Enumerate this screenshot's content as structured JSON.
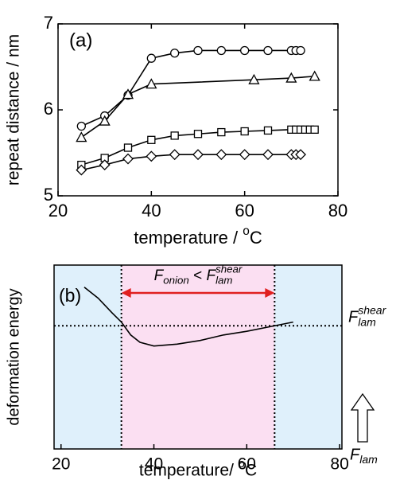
{
  "chart_data": [
    {
      "type": "line",
      "label": "(a)",
      "ylabel": "repeat distance / nm",
      "xlabel_parts": [
        {
          "t": "temperature / "
        },
        {
          "sup": "o"
        },
        {
          "t": "C"
        }
      ],
      "xlim": [
        20,
        80
      ],
      "ylim": [
        5,
        7
      ],
      "xticks": [
        20,
        40,
        60,
        80
      ],
      "yticks": [
        5,
        6,
        7
      ],
      "series": [
        {
          "marker": "circle",
          "color": "#000000",
          "x": [
            25,
            30,
            35,
            40,
            45,
            50,
            55,
            60,
            65,
            70,
            71,
            72
          ],
          "values": [
            5.81,
            5.93,
            6.17,
            6.6,
            6.66,
            6.69,
            6.69,
            6.69,
            6.69,
            6.69,
            6.69,
            6.69
          ]
        },
        {
          "marker": "triangle",
          "color": "#000000",
          "x": [
            25,
            30,
            35,
            40,
            62,
            70,
            75
          ],
          "values": [
            5.68,
            5.87,
            6.18,
            6.3,
            6.35,
            6.37,
            6.39
          ]
        },
        {
          "marker": "square",
          "color": "#000000",
          "x": [
            25,
            30,
            35,
            40,
            45,
            50,
            55,
            60,
            65,
            70,
            71,
            72,
            73,
            74,
            75
          ],
          "values": [
            5.36,
            5.44,
            5.56,
            5.65,
            5.7,
            5.72,
            5.74,
            5.75,
            5.76,
            5.77,
            5.77,
            5.77,
            5.77,
            5.77,
            5.77
          ]
        },
        {
          "marker": "diamond",
          "color": "#000000",
          "x": [
            25,
            30,
            35,
            40,
            45,
            50,
            55,
            60,
            65,
            70,
            71,
            72
          ],
          "values": [
            5.3,
            5.36,
            5.43,
            5.46,
            5.48,
            5.48,
            5.48,
            5.48,
            5.48,
            5.48,
            5.48,
            5.48
          ]
        }
      ]
    },
    {
      "type": "line",
      "label": "(b)",
      "ylabel": "deformation energy",
      "xlabel_parts": [
        {
          "t": "temperature/ "
        },
        {
          "sup": "o"
        },
        {
          "t": "C"
        }
      ],
      "xlim": [
        18.5,
        80.5
      ],
      "ylim": [
        0,
        1
      ],
      "xticks": [
        20,
        40,
        60,
        80
      ],
      "regions": [
        {
          "from": 18.5,
          "to": 33,
          "color": "#dff0fb"
        },
        {
          "from": 33,
          "to": 66,
          "color": "#fbdff2"
        },
        {
          "from": 66,
          "to": 80.5,
          "color": "#dff0fb"
        }
      ],
      "threshold": 0.67,
      "arrow_color": "#e02020",
      "arrow_label_parts": [
        {
          "t": "F",
          "italic": true
        },
        {
          "sub": "onion",
          "italic": true
        },
        {
          "t": " < "
        },
        {
          "t": "F",
          "italic": true
        },
        {
          "sub": "lam",
          "sup": "shear",
          "italic": true
        }
      ],
      "threshold_label_parts": [
        {
          "t": "F",
          "italic": true
        },
        {
          "sub": "lam",
          "sup": "shear",
          "italic": true
        }
      ],
      "base_label_parts": [
        {
          "t": "F",
          "italic": true
        },
        {
          "sub": "lam",
          "italic": true
        }
      ],
      "series": [
        {
          "color": "#000000",
          "x": [
            25,
            28,
            31,
            33,
            35,
            37,
            40,
            45,
            50,
            55,
            60,
            66,
            70
          ],
          "values": [
            0.88,
            0.82,
            0.74,
            0.69,
            0.62,
            0.58,
            0.56,
            0.57,
            0.59,
            0.62,
            0.64,
            0.67,
            0.69
          ]
        }
      ]
    }
  ]
}
